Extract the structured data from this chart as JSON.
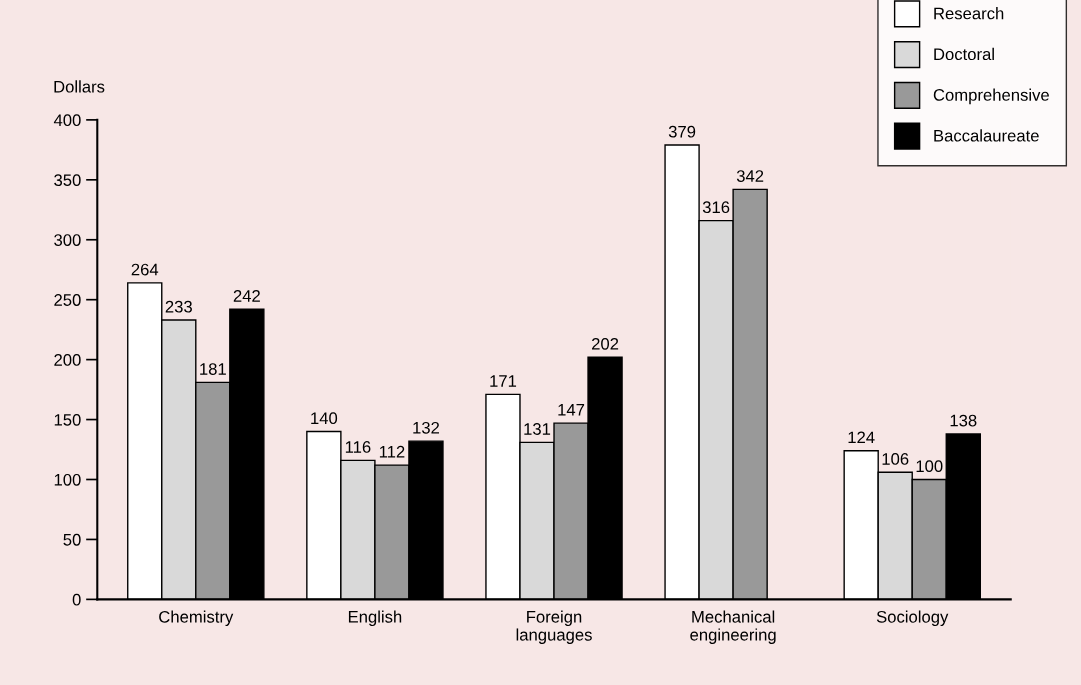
{
  "chart_data": {
    "type": "bar",
    "ylabel": "Dollars",
    "categories": [
      "Chemistry",
      "English",
      "Foreign\nlanguages",
      "Mechanical\nengineering",
      "Sociology"
    ],
    "series": [
      {
        "name": "Research",
        "color": "#ffffff",
        "values": [
          264,
          140,
          171,
          379,
          124
        ]
      },
      {
        "name": "Doctoral",
        "color": "#d9d9d9",
        "values": [
          233,
          116,
          131,
          316,
          106
        ]
      },
      {
        "name": "Comprehensive",
        "color": "#999999",
        "values": [
          181,
          112,
          147,
          342,
          100
        ]
      },
      {
        "name": "Baccalaureate",
        "color": "#000000",
        "values": [
          242,
          132,
          202,
          null,
          138
        ]
      }
    ],
    "ylim": [
      0,
      400
    ],
    "yticks": [
      0,
      50,
      100,
      150,
      200,
      250,
      300,
      350,
      400
    ],
    "data_labels": true,
    "grid": false,
    "legend": "top right"
  }
}
